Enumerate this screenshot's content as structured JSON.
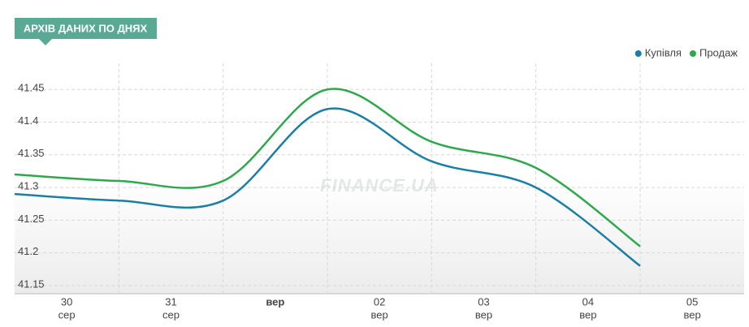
{
  "header": {
    "title": "АРХІВ ДАНИХ ПО ДНЯХ"
  },
  "chart_data": {
    "type": "line",
    "watermark": "FINANCE.UA",
    "categories": [
      "30",
      "31",
      null,
      "02",
      "03",
      "04",
      "05"
    ],
    "category_months": [
      "сер",
      "сер",
      "вер",
      "вер",
      "вер",
      "вер",
      "вер"
    ],
    "series": [
      {
        "name": "Купівля",
        "color": "#1a7ea6",
        "values": [
          41.29,
          41.28,
          41.28,
          41.42,
          41.34,
          41.3,
          41.18
        ]
      },
      {
        "name": "Продаж",
        "color": "#2da84a",
        "values": [
          41.32,
          41.31,
          41.31,
          41.45,
          41.37,
          41.33,
          41.21
        ]
      }
    ],
    "ylim": [
      41.1375,
      41.49
    ],
    "yticks": [
      41.15,
      41.2,
      41.25,
      41.3,
      41.35,
      41.4,
      41.45
    ],
    "grid": true,
    "legend": "top-right"
  }
}
